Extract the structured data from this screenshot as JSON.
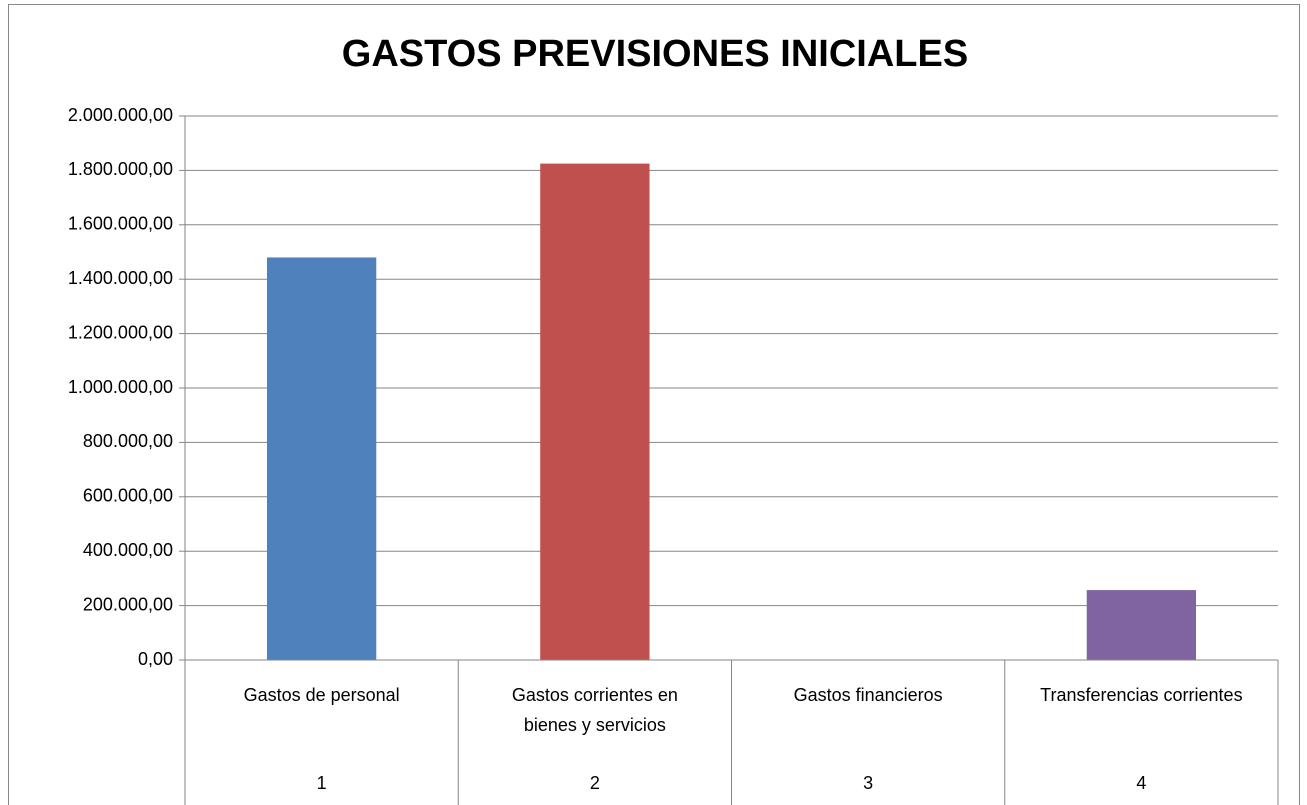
{
  "chart_data": {
    "type": "bar",
    "title": "GASTOS  PREVISIONES INICIALES",
    "categories": [
      "Gastos de personal",
      "Gastos corrientes en bienes y servicios",
      "Gastos financieros",
      "Transferencias corrientes"
    ],
    "category_groups": [
      "1",
      "2",
      "3",
      "4"
    ],
    "values": [
      1480000,
      1825000,
      0,
      257000
    ],
    "colors": [
      "#4f81bd",
      "#c0504d",
      "#9bbb59",
      "#8064a2"
    ],
    "ylim": [
      0,
      2000000
    ],
    "yticks": [
      {
        "value": 0,
        "label": "0,00"
      },
      {
        "value": 200000,
        "label": "200.000,00"
      },
      {
        "value": 400000,
        "label": "400.000,00"
      },
      {
        "value": 600000,
        "label": "600.000,00"
      },
      {
        "value": 800000,
        "label": "800.000,00"
      },
      {
        "value": 1000000,
        "label": "1.000.000,00"
      },
      {
        "value": 1200000,
        "label": "1.200.000,00"
      },
      {
        "value": 1400000,
        "label": "1.400.000,00"
      },
      {
        "value": 1600000,
        "label": "1.600.000,00"
      },
      {
        "value": 1800000,
        "label": "1.800.000,00"
      },
      {
        "value": 2000000,
        "label": "2.000.000,00"
      }
    ],
    "grid": true
  }
}
